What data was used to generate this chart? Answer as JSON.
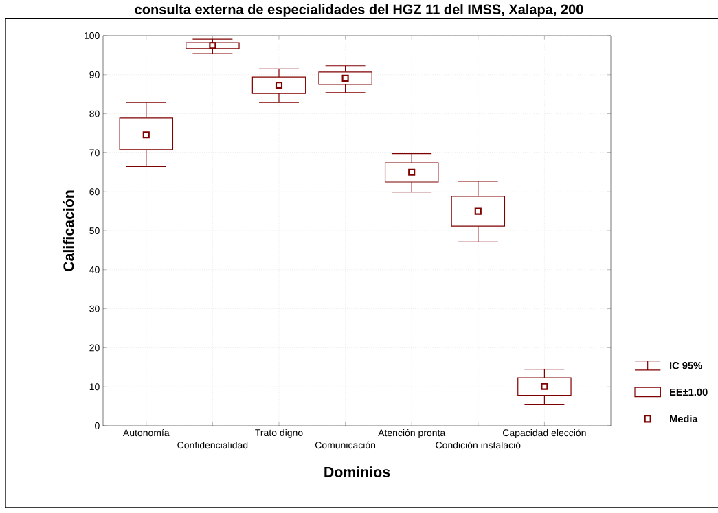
{
  "chart_data": {
    "type": "box",
    "title": "consulta externa de especialidades del HGZ 11 del IMSS, Xalapa, 200",
    "xlabel": "Dominios",
    "ylabel": "Calificación",
    "categories": [
      "Autonomía",
      "Confidencialidad",
      "Trato digno",
      "Comunicación",
      "Atención pronta",
      "Condición instalació",
      "Capacidad elección"
    ],
    "series": [
      {
        "color": "#800000",
        "boxes": [
          {
            "low": 66.5,
            "q1": 70.8,
            "median": 74.6,
            "q3": 78.9,
            "high": 82.9
          },
          {
            "low": 95.4,
            "q1": 96.7,
            "median": 97.5,
            "q3": 98.2,
            "high": 99.1
          },
          {
            "low": 82.9,
            "q1": 85.2,
            "median": 87.3,
            "q3": 89.4,
            "high": 91.5
          },
          {
            "low": 85.4,
            "q1": 87.5,
            "median": 89.1,
            "q3": 90.7,
            "high": 92.3
          },
          {
            "low": 59.9,
            "q1": 62.5,
            "median": 65.0,
            "q3": 67.4,
            "high": 69.8
          },
          {
            "low": 47.1,
            "q1": 51.2,
            "median": 55.0,
            "q3": 58.8,
            "high": 62.7
          },
          {
            "low": 5.4,
            "q1": 7.8,
            "median": 10.1,
            "q3": 12.3,
            "high": 14.5
          }
        ]
      }
    ],
    "annotations": [
      "IC 95%",
      "EE±1.00",
      "Media"
    ],
    "ylim": [
      0,
      100
    ],
    "yticks": [
      0,
      10,
      20,
      30,
      40,
      50,
      60,
      70,
      80,
      90,
      100
    ],
    "grid": true,
    "marker": "square"
  }
}
